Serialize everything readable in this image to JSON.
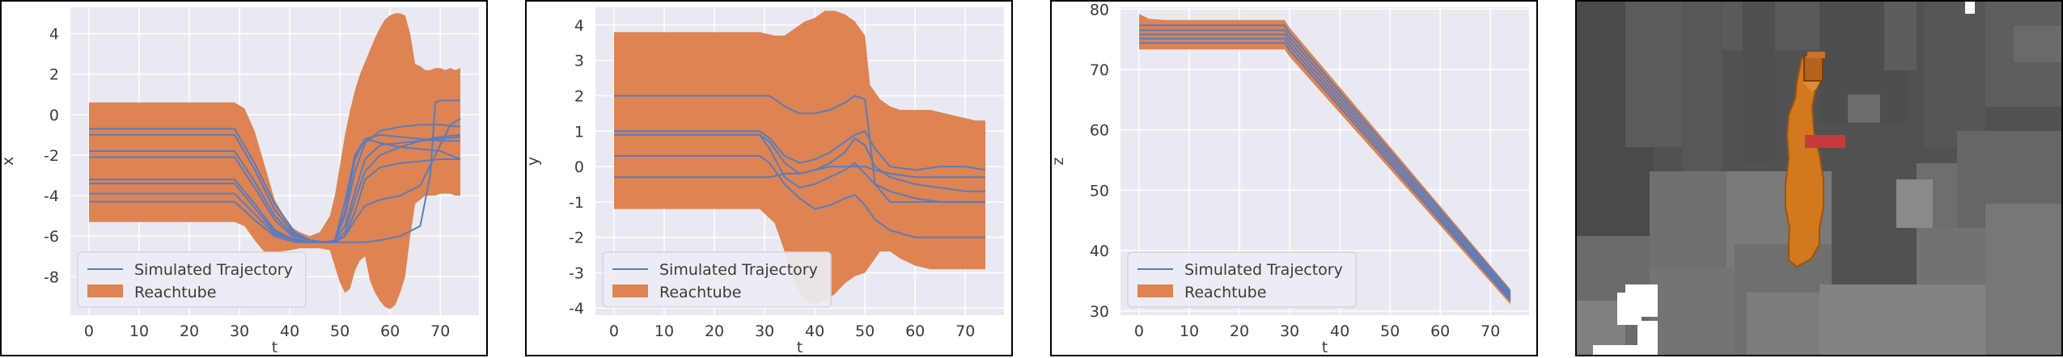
{
  "colors": {
    "plot_bg": "#e9e9f1",
    "grid": "#ffffff",
    "reachtube": "#dd8452",
    "trajectory": "#5b7bbd",
    "scene_bg": "#515151"
  },
  "legend": {
    "trajectory_label": "Simulated Trajectory",
    "reachtube_label": "Reachtube",
    "placement": "lower-left"
  },
  "chart_data": [
    {
      "type": "area",
      "xlabel": "t",
      "ylabel": "x",
      "xlim": [
        -3.7,
        77.7
      ],
      "ylim": [
        -9.9,
        5.3
      ],
      "xticks": [
        0,
        10,
        20,
        30,
        40,
        50,
        60,
        70
      ],
      "yticks": [
        -8,
        -6,
        -4,
        -2,
        0,
        2,
        4
      ],
      "grid": true,
      "band": {
        "t": [
          0,
          5,
          10,
          15,
          20,
          25,
          29,
          31,
          33,
          35,
          37,
          40,
          42,
          44,
          46,
          48,
          49,
          50,
          51,
          52,
          53,
          54,
          55,
          56,
          57,
          58,
          59,
          60,
          61,
          62,
          63,
          64,
          65,
          66,
          67,
          68,
          69,
          70,
          71,
          72,
          73,
          74
        ],
        "upper": [
          0.6,
          0.6,
          0.6,
          0.6,
          0.6,
          0.6,
          0.6,
          0.3,
          -0.8,
          -2.5,
          -4.2,
          -5.5,
          -5.8,
          -6.0,
          -5.8,
          -5.0,
          -4.0,
          -2.5,
          -1.0,
          0.2,
          1.2,
          2.0,
          2.6,
          3.2,
          3.8,
          4.3,
          4.7,
          4.9,
          5.0,
          5.0,
          4.9,
          4.0,
          2.5,
          2.4,
          2.2,
          2.2,
          2.3,
          2.3,
          2.2,
          2.3,
          2.2,
          2.3
        ],
        "lower": [
          -5.3,
          -5.3,
          -5.3,
          -5.3,
          -5.3,
          -5.3,
          -5.3,
          -5.5,
          -6.2,
          -6.8,
          -6.8,
          -6.7,
          -6.6,
          -6.6,
          -6.6,
          -6.7,
          -7.5,
          -8.3,
          -8.8,
          -8.6,
          -7.7,
          -7.2,
          -7.0,
          -8.2,
          -8.8,
          -9.2,
          -9.5,
          -9.6,
          -9.4,
          -8.8,
          -8.0,
          -6.0,
          -4.4,
          -4.2,
          -4.0,
          -4.0,
          -4.0,
          -3.9,
          -3.9,
          -3.9,
          -4.0,
          -4.0
        ]
      },
      "series": [
        {
          "t": [
            0,
            29,
            33,
            37,
            41,
            44,
            47,
            49,
            51,
            53,
            55,
            58,
            62,
            66,
            70,
            74
          ],
          "values": [
            -0.7,
            -0.7,
            -2.4,
            -4.4,
            -5.8,
            -6.2,
            -6.3,
            -6.2,
            -4.8,
            -2.2,
            -1.2,
            -1.4,
            -1.6,
            -1.7,
            -1.8,
            -2.2
          ]
        },
        {
          "t": [
            0,
            29,
            33,
            37,
            41,
            44,
            47,
            49,
            51,
            53,
            55,
            58,
            62,
            66,
            70,
            74
          ],
          "values": [
            -1.0,
            -1.0,
            -2.7,
            -4.7,
            -5.9,
            -6.2,
            -6.3,
            -6.2,
            -5.0,
            -2.8,
            -1.4,
            -0.8,
            -0.6,
            -0.5,
            -0.5,
            -0.6
          ]
        },
        {
          "t": [
            0,
            29,
            33,
            37,
            41,
            44,
            47,
            49,
            51,
            53,
            55,
            58,
            62,
            66,
            70,
            74
          ],
          "values": [
            -1.8,
            -1.8,
            -3.3,
            -5.0,
            -6.0,
            -6.2,
            -6.3,
            -6.3,
            -6.0,
            -4.8,
            -3.2,
            -2.6,
            -2.4,
            -2.3,
            -2.2,
            -2.2
          ]
        },
        {
          "t": [
            0,
            29,
            33,
            37,
            41,
            44,
            47,
            49,
            51,
            53,
            55,
            58,
            62,
            66,
            70,
            74
          ],
          "values": [
            -2.1,
            -2.1,
            -3.6,
            -5.2,
            -6.1,
            -6.3,
            -6.3,
            -6.3,
            -5.8,
            -4.2,
            -2.8,
            -2.0,
            -1.6,
            -1.3,
            -1.1,
            -1.0
          ]
        },
        {
          "t": [
            0,
            29,
            33,
            37,
            41,
            44,
            47,
            49,
            51,
            53,
            55,
            58,
            62,
            66,
            68,
            69,
            70,
            74
          ],
          "values": [
            -3.2,
            -3.2,
            -4.4,
            -5.7,
            -6.2,
            -6.3,
            -6.3,
            -6.3,
            -6.3,
            -6.3,
            -6.3,
            -6.2,
            -6.0,
            -5.5,
            -3.0,
            0.6,
            0.7,
            0.7
          ]
        },
        {
          "t": [
            0,
            29,
            33,
            37,
            41,
            44,
            47,
            49,
            51,
            53,
            55,
            58,
            62,
            66,
            70,
            74
          ],
          "values": [
            -3.4,
            -3.4,
            -4.6,
            -5.8,
            -6.2,
            -6.3,
            -6.3,
            -6.2,
            -5.5,
            -3.8,
            -2.2,
            -1.5,
            -1.4,
            -1.3,
            -1.2,
            -1.1
          ]
        },
        {
          "t": [
            0,
            29,
            33,
            37,
            41,
            44,
            47,
            49,
            51,
            53,
            55,
            58,
            62,
            66,
            70,
            74
          ],
          "values": [
            -3.9,
            -3.9,
            -4.9,
            -5.9,
            -6.2,
            -6.3,
            -6.3,
            -6.2,
            -4.3,
            -2.0,
            -1.2,
            -1.0,
            -1.1,
            -1.2,
            -1.3,
            -1.3
          ]
        },
        {
          "t": [
            0,
            29,
            33,
            37,
            41,
            44,
            47,
            49,
            51,
            53,
            55,
            58,
            62,
            66,
            70,
            72,
            74
          ],
          "values": [
            -4.3,
            -4.3,
            -5.2,
            -6.0,
            -6.3,
            -6.3,
            -6.3,
            -6.3,
            -6.0,
            -5.2,
            -4.5,
            -4.2,
            -4.0,
            -3.5,
            -1.5,
            -0.5,
            -0.2
          ]
        }
      ]
    },
    {
      "type": "area",
      "xlabel": "t",
      "ylabel": "y",
      "xlim": [
        -3.7,
        77.7
      ],
      "ylim": [
        -4.2,
        4.5
      ],
      "xticks": [
        0,
        10,
        20,
        30,
        40,
        50,
        60,
        70
      ],
      "yticks": [
        -4,
        -3,
        -2,
        -1,
        0,
        1,
        2,
        3,
        4
      ],
      "grid": true,
      "band": {
        "t": [
          0,
          5,
          10,
          15,
          20,
          25,
          29,
          32,
          34,
          36,
          38,
          40,
          42,
          44,
          46,
          48,
          50,
          51,
          53,
          55,
          57,
          60,
          63,
          66,
          69,
          72,
          74
        ],
        "upper": [
          3.8,
          3.8,
          3.8,
          3.8,
          3.8,
          3.8,
          3.8,
          3.7,
          3.7,
          3.9,
          4.1,
          4.2,
          4.4,
          4.4,
          4.3,
          4.1,
          3.7,
          2.3,
          1.9,
          1.7,
          1.6,
          1.6,
          1.6,
          1.5,
          1.4,
          1.3,
          1.3
        ],
        "lower": [
          -1.2,
          -1.2,
          -1.2,
          -1.2,
          -1.2,
          -1.2,
          -1.2,
          -1.6,
          -2.4,
          -3.3,
          -3.8,
          -3.9,
          -3.8,
          -3.6,
          -3.3,
          -3.1,
          -3.0,
          -2.8,
          -2.4,
          -2.4,
          -2.6,
          -2.8,
          -2.9,
          -2.9,
          -2.9,
          -2.9,
          -2.9
        ]
      },
      "series": [
        {
          "t": [
            0,
            29,
            31,
            34,
            37,
            40,
            43,
            46,
            48,
            50,
            52,
            55,
            60,
            65,
            70,
            74
          ],
          "values": [
            2.0,
            2.0,
            2.0,
            1.7,
            1.5,
            1.5,
            1.6,
            1.8,
            2.0,
            1.9,
            -0.5,
            -1.0,
            -1.0,
            -1.0,
            -1.0,
            -1.0
          ]
        },
        {
          "t": [
            0,
            29,
            31,
            34,
            37,
            40,
            43,
            46,
            48,
            50,
            52,
            55,
            60,
            65,
            70,
            74
          ],
          "values": [
            1.0,
            1.0,
            0.8,
            0.3,
            0.1,
            0.2,
            0.4,
            0.7,
            0.9,
            1.0,
            0.5,
            0.0,
            -0.1,
            0.0,
            0.0,
            -0.1
          ]
        },
        {
          "t": [
            0,
            29,
            31,
            34,
            37,
            40,
            43,
            46,
            48,
            50,
            52,
            55,
            60,
            65,
            70,
            74
          ],
          "values": [
            0.9,
            0.9,
            0.7,
            0.1,
            -0.2,
            -0.1,
            0.1,
            0.4,
            0.8,
            0.6,
            0.0,
            -0.3,
            -0.5,
            -0.6,
            -0.7,
            -0.7
          ]
        },
        {
          "t": [
            0,
            29,
            31,
            34,
            37,
            40,
            43,
            46,
            48,
            50,
            52,
            55,
            60,
            65,
            70,
            74
          ],
          "values": [
            0.9,
            0.9,
            0.5,
            -0.3,
            -0.6,
            -0.5,
            -0.3,
            -0.1,
            0.1,
            -0.2,
            -0.5,
            -0.7,
            -0.9,
            -1.0,
            -1.0,
            -1.0
          ]
        },
        {
          "t": [
            0,
            29,
            31,
            34,
            37,
            40,
            43,
            46,
            48,
            50,
            52,
            55,
            60,
            65,
            70,
            74
          ],
          "values": [
            0.3,
            0.3,
            0.1,
            -0.5,
            -0.9,
            -1.2,
            -1.1,
            -0.9,
            -0.8,
            -1.1,
            -1.5,
            -1.8,
            -2.0,
            -2.0,
            -2.0,
            -2.0
          ]
        },
        {
          "t": [
            0,
            29,
            31,
            34,
            37,
            40,
            43,
            46,
            48,
            50,
            52,
            55,
            60,
            65,
            70,
            74
          ],
          "values": [
            -0.3,
            -0.3,
            -0.3,
            -0.2,
            -0.2,
            -0.1,
            0.0,
            0.0,
            0.0,
            0.0,
            -0.1,
            -0.2,
            -0.3,
            -0.3,
            -0.3,
            -0.3
          ]
        }
      ]
    },
    {
      "type": "area",
      "xlabel": "t",
      "ylabel": "z",
      "xlim": [
        -3.7,
        77.7
      ],
      "ylim": [
        29.3,
        80.3
      ],
      "xticks": [
        0,
        10,
        20,
        30,
        40,
        50,
        60,
        70
      ],
      "yticks": [
        30,
        40,
        50,
        60,
        70,
        80
      ],
      "grid": true,
      "band": {
        "t": [
          0,
          1,
          2,
          5,
          10,
          15,
          20,
          25,
          29,
          30,
          74
        ],
        "upper": [
          79.2,
          78.8,
          78.4,
          78.2,
          78.2,
          78.2,
          78.2,
          78.2,
          78.2,
          76.9,
          33.6
        ],
        "lower": [
          73.3,
          73.3,
          73.3,
          73.3,
          73.3,
          73.3,
          73.3,
          73.3,
          73.3,
          72.1,
          31.1
        ]
      },
      "series": [
        {
          "t": [
            0,
            29,
            30,
            74
          ],
          "values": [
            77.3,
            77.3,
            76.0,
            33.2
          ]
        },
        {
          "t": [
            0,
            29,
            30,
            74
          ],
          "values": [
            76.5,
            76.5,
            75.3,
            32.8
          ]
        },
        {
          "t": [
            0,
            29,
            30,
            74
          ],
          "values": [
            75.8,
            75.8,
            74.6,
            32.4
          ]
        },
        {
          "t": [
            0,
            29,
            30,
            74
          ],
          "values": [
            75.1,
            75.1,
            73.9,
            32.0
          ]
        },
        {
          "t": [
            0,
            29,
            30,
            74
          ],
          "values": [
            74.4,
            74.4,
            73.2,
            31.7
          ]
        }
      ]
    }
  ]
}
